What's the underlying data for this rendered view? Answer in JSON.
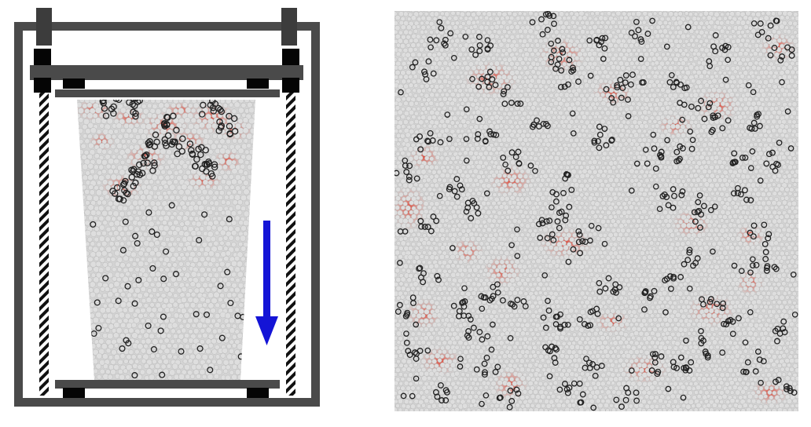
{
  "figure": {
    "panels": [
      {
        "id": "a",
        "kind": "compression-apparatus",
        "arrow_direction": "down"
      },
      {
        "id": "b",
        "kind": "packing-close-up"
      }
    ]
  },
  "colors": {
    "frame": "#4a4a4a",
    "platen": "#3c3c3c",
    "foot": "#050505",
    "particle_fill": "#d4d4d4",
    "particle_edge": "#b9b9b9",
    "highlight_ring": "#222222",
    "stress": "#e0301e",
    "arrow": "#1414d6",
    "background": "#ffffff"
  },
  "icons": [
    "downward-arrow-icon"
  ]
}
